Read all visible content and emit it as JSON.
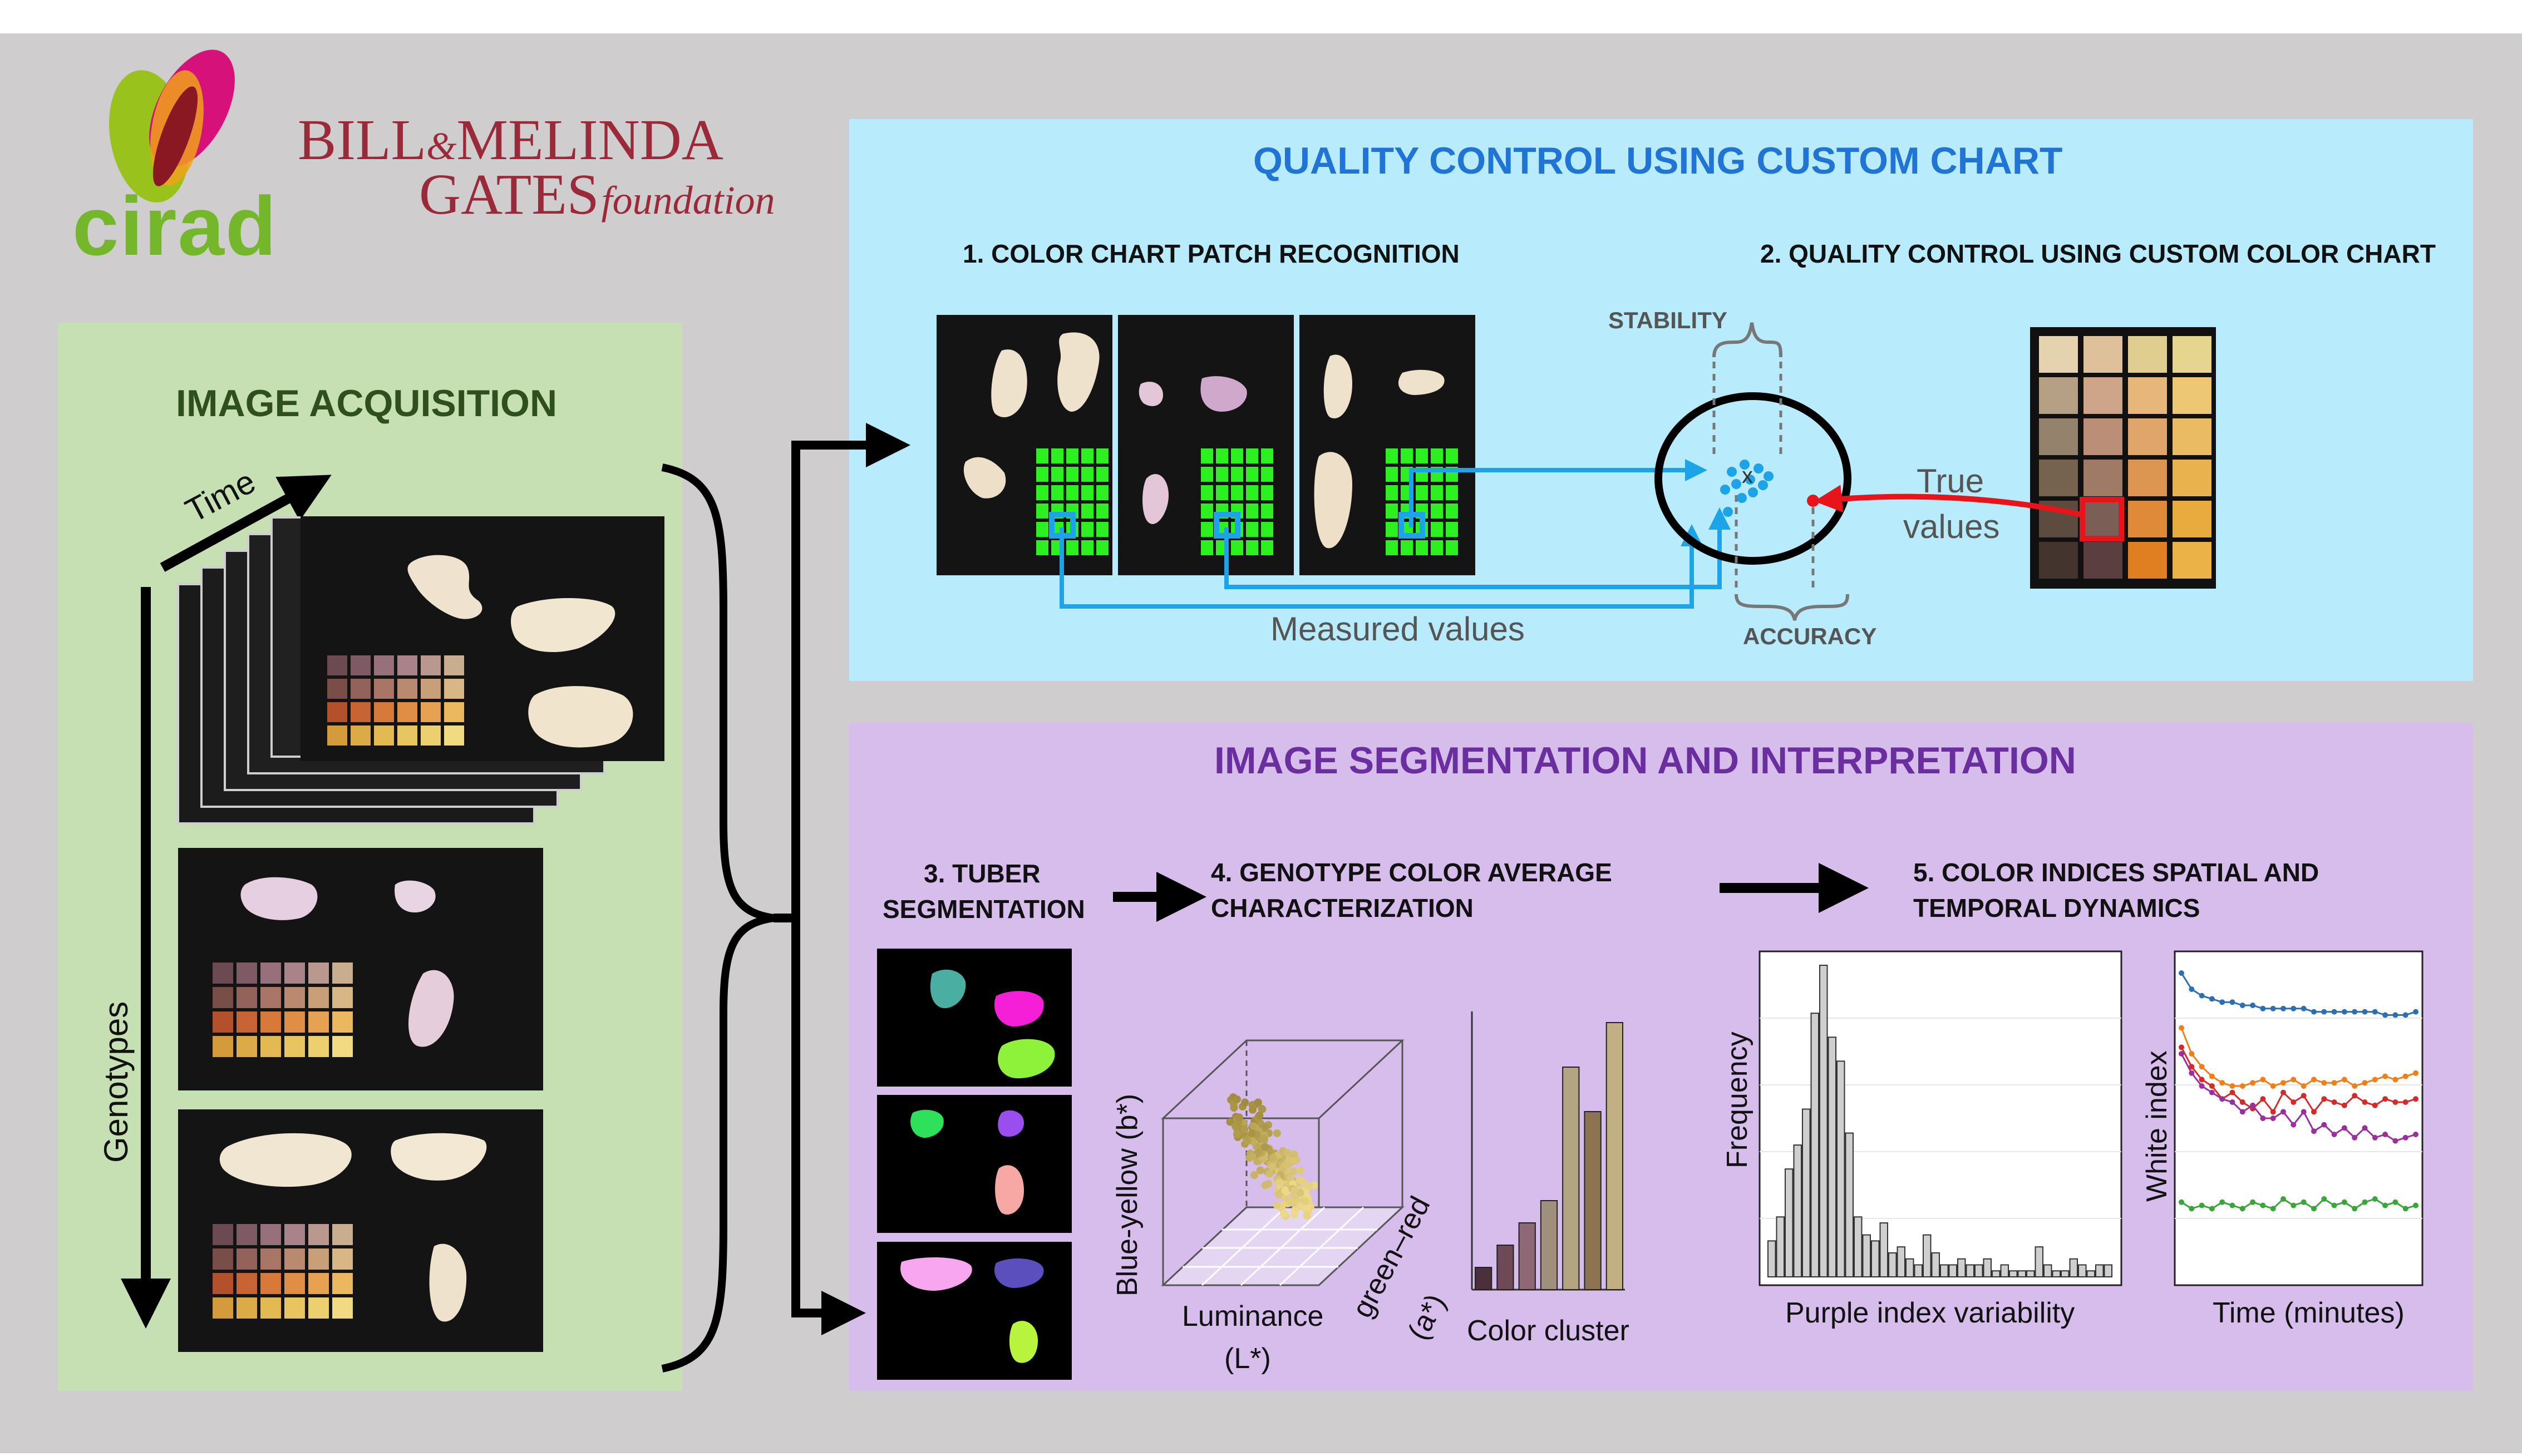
{
  "logos": {
    "cirad": "cirad",
    "gates_line1_a": "BILL",
    "gates_amp": "&",
    "gates_line1_b": "MELINDA",
    "gates_line2_a": "GATES",
    "gates_line2_b": "foundation"
  },
  "acquisition": {
    "title": "IMAGE ACQUISITION",
    "time_label": "Time",
    "genotypes_label": "Genotypes"
  },
  "quality": {
    "title": "QUALITY CONTROL USING CUSTOM CHART",
    "step1": "1. COLOR CHART PATCH RECOGNITION",
    "step2": "2. QUALITY CONTROL USING CUSTOM COLOR CHART",
    "stability": "STABILITY",
    "accuracy": "ACCURACY",
    "measured": "Measured values",
    "true_line1": "True",
    "true_line2": "values"
  },
  "segmentation": {
    "title": "IMAGE SEGMENTATION AND INTERPRETATION",
    "step3_line1": "3. TUBER",
    "step3_line2": "SEGMENTATION",
    "step4_line1": "4. GENOTYPE COLOR AVERAGE",
    "step4_line2": "CHARACTERIZATION",
    "step5_line1": "5. COLOR INDICES SPATIAL AND",
    "step5_line2": "TEMPORAL DYNAMICS",
    "luminance_line1": "Luminance",
    "luminance_line2": "(L*)",
    "blue_yellow": "Blue-yellow (b*)",
    "green_red_line1": "green–red",
    "green_red_line2": "(a*)",
    "color_cluster": "Color cluster",
    "frequency": "Frequency",
    "purple_var": "Purple index variability",
    "white_index": "White index",
    "time_minutes": "Time (minutes)"
  },
  "colors": {
    "background": "#cfcdcd",
    "green_panel": "#c6e0b4",
    "blue_panel": "#b8ebfb",
    "purple_panel": "#d6bdec",
    "arrow_blue": "#1ca3e8",
    "arrow_red": "#e8141b"
  },
  "chart_data": [
    {
      "type": "bar",
      "title": "",
      "xlabel": "Purple index variability",
      "ylabel": "Frequency",
      "values": [
        6,
        10,
        18,
        22,
        28,
        44,
        52,
        40,
        36,
        24,
        10,
        7,
        6,
        9,
        4,
        5,
        3,
        2,
        7,
        4,
        2,
        2,
        3,
        2,
        2,
        3,
        1,
        2,
        1,
        1,
        1,
        5,
        2,
        1,
        1,
        3,
        2,
        1,
        2,
        2
      ],
      "grid": true
    },
    {
      "type": "line",
      "title": "",
      "xlabel": "Time (minutes)",
      "ylabel": "White index",
      "grid": true,
      "series": [
        {
          "color": "#2d6fb0",
          "values": [
            95,
            90,
            88,
            87,
            86,
            86,
            85,
            85,
            84,
            84,
            84,
            84,
            84,
            83,
            83,
            83,
            83,
            83,
            83,
            83,
            82,
            82,
            82,
            83
          ]
        },
        {
          "color": "#f07f1a",
          "values": [
            78,
            70,
            66,
            63,
            61,
            60,
            60,
            61,
            62,
            60,
            61,
            62,
            60,
            62,
            61,
            61,
            62,
            60,
            61,
            62,
            63,
            62,
            63,
            64
          ]
        },
        {
          "color": "#d42a2a",
          "values": [
            72,
            66,
            62,
            60,
            56,
            58,
            55,
            53,
            56,
            52,
            58,
            55,
            57,
            52,
            56,
            55,
            54,
            57,
            55,
            54,
            56,
            55,
            55,
            56
          ]
        },
        {
          "color": "#9b2f9e",
          "values": [
            70,
            64,
            60,
            58,
            56,
            55,
            52,
            54,
            50,
            50,
            52,
            48,
            52,
            46,
            48,
            45,
            47,
            44,
            47,
            44,
            45,
            43,
            44,
            45
          ]
        },
        {
          "color": "#3aa53a",
          "values": [
            24,
            22,
            23,
            22,
            24,
            23,
            22,
            24,
            23,
            22,
            25,
            23,
            24,
            22,
            25,
            23,
            24,
            22,
            24,
            25,
            23,
            24,
            22,
            23
          ]
        }
      ]
    },
    {
      "type": "bar",
      "title": "",
      "xlabel": "Color cluster",
      "ylabel": "",
      "values": [
        1,
        2,
        3,
        4,
        10,
        8,
        12
      ],
      "colors": [
        "#4b2f3a",
        "#6d4a56",
        "#8e6874",
        "#9e907a",
        "#b3a582",
        "#8c7352",
        "#c1b084"
      ]
    }
  ]
}
